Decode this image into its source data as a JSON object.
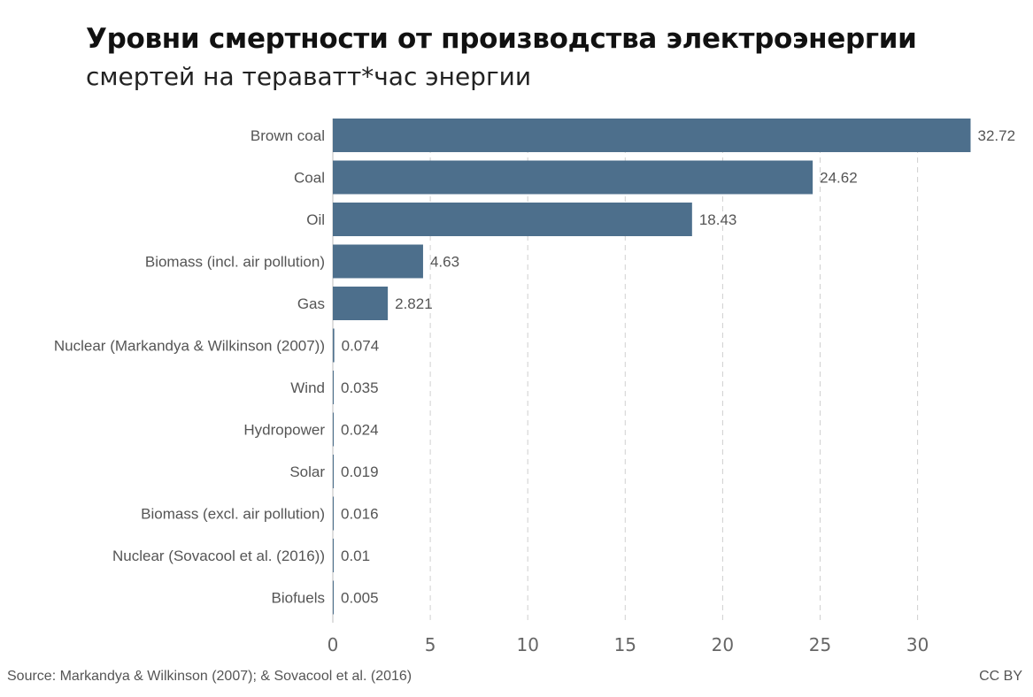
{
  "title": "Уровни смертности от производства электроэнергии",
  "subtitle": "смертей на тераватт*час энергии",
  "source": "Source: Markandya & Wilkinson (2007); & Sovacool et al. (2016)",
  "license": "CC BY",
  "colors": {
    "bar": "#4d6f8c",
    "grid": "#d0d0d0",
    "axis": "#bdbdbd"
  },
  "chart_data": {
    "type": "bar",
    "orientation": "horizontal",
    "categories": [
      "Brown coal",
      "Coal",
      "Oil",
      "Biomass (incl. air pollution)",
      "Gas",
      "Nuclear (Markandya & Wilkinson (2007))",
      "Wind",
      "Hydropower",
      "Solar",
      "Biomass (excl. air pollution)",
      "Nuclear (Sovacool et al. (2016))",
      "Biofuels"
    ],
    "values": [
      32.72,
      24.62,
      18.43,
      4.63,
      2.821,
      0.074,
      0.035,
      0.024,
      0.019,
      0.016,
      0.01,
      0.005
    ],
    "value_labels": [
      "32.72",
      "24.62",
      "18.43",
      "4.63",
      "2.821",
      "0.074",
      "0.035",
      "0.024",
      "0.019",
      "0.016",
      "0.01",
      "0.005"
    ],
    "xticks": [
      0,
      5,
      10,
      15,
      20,
      25,
      30
    ],
    "xlim": [
      0,
      32.72
    ],
    "grid": "vertical dashed",
    "title": "Уровни смертности от производства электроэнергии",
    "subtitle": "смертей на тераватт*час энергии"
  }
}
